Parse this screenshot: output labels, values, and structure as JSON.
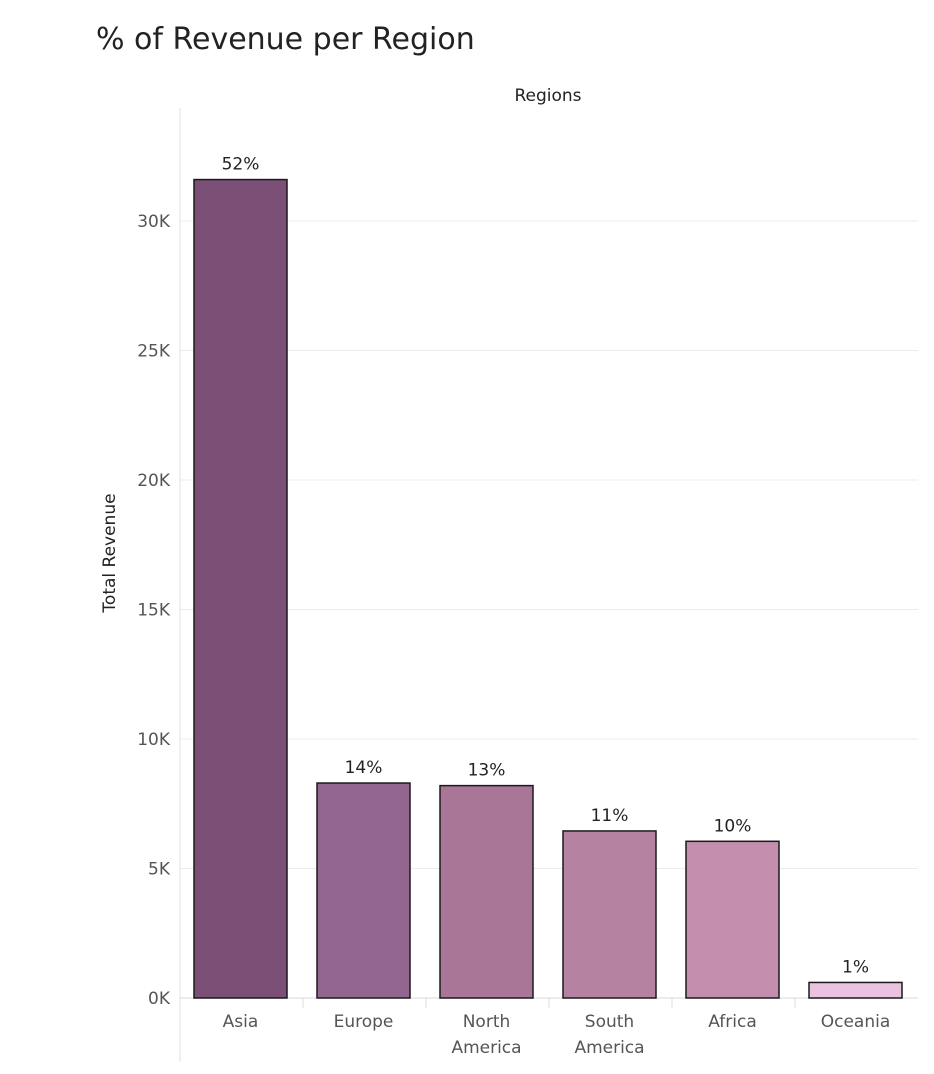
{
  "chart_data": {
    "type": "bar",
    "title": "% of Revenue per Region",
    "column_header": "Regions",
    "xlabel": "",
    "ylabel": "Total Revenue",
    "categories": [
      [
        "Asia"
      ],
      [
        "Europe"
      ],
      [
        "North",
        "America"
      ],
      [
        "South",
        "America"
      ],
      [
        "Africa"
      ],
      [
        "Oceania"
      ]
    ],
    "values": [
      31600,
      8300,
      8200,
      6450,
      6050,
      600
    ],
    "value_labels": [
      "52%",
      "14%",
      "13%",
      "11%",
      "10%",
      "1%"
    ],
    "bar_colors": [
      "#7b4f76",
      "#93668f",
      "#a97698",
      "#b682a2",
      "#c48eae",
      "#e9c3df"
    ],
    "y_ticks": [
      0,
      5000,
      10000,
      15000,
      20000,
      25000,
      30000
    ],
    "y_tick_labels": [
      "0K",
      "5K",
      "10K",
      "15K",
      "20K",
      "25K",
      "30K"
    ],
    "ylim": [
      0,
      30000
    ],
    "grid": true,
    "legend": "none"
  }
}
